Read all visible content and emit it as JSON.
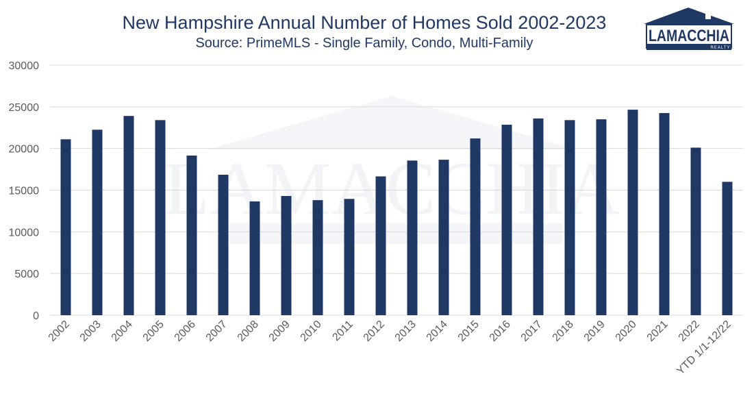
{
  "logo": {
    "name": "LAMACCHIA",
    "sub": "REALTY"
  },
  "colors": {
    "bar": "#1f3864",
    "title": "#1f3864",
    "grid": "#d9d9d9",
    "tick": "#595959"
  },
  "chart_data": {
    "type": "bar",
    "title": "New Hampshire Annual Number of Homes Sold 2002-2023",
    "subtitle": "Source: PrimeMLS - Single Family, Condo, Multi-Family",
    "xlabel": "",
    "ylabel": "",
    "ylim": [
      0,
      30000
    ],
    "yticks": [
      0,
      5000,
      10000,
      15000,
      20000,
      25000,
      30000
    ],
    "grid": true,
    "legend": "none",
    "categories": [
      "2002",
      "2003",
      "2004",
      "2005",
      "2006",
      "2007",
      "2008",
      "2009",
      "2010",
      "2011",
      "2012",
      "2013",
      "2014",
      "2015",
      "2016",
      "2017",
      "2018",
      "2019",
      "2020",
      "2021",
      "2022",
      "YTD 1/1-12/22"
    ],
    "values": [
      21100,
      22250,
      23900,
      23400,
      19150,
      16850,
      13650,
      14300,
      13800,
      13950,
      16650,
      18550,
      18650,
      21200,
      22850,
      23600,
      23400,
      23500,
      24650,
      24250,
      20100,
      16000
    ]
  }
}
